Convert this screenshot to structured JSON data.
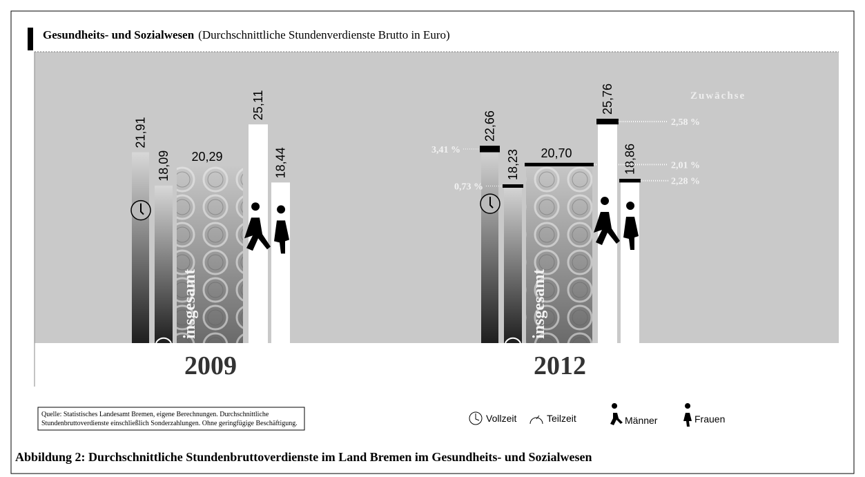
{
  "chart_data": {
    "type": "bar",
    "title": "Gesundheits- und Sozialwesen",
    "subtitle": "(Durchschnittliche Stundenverdienste Brutto in Euro)",
    "categories": [
      "Vollzeit",
      "Teilzeit",
      "insgesamt",
      "Männer",
      "Frauen"
    ],
    "series": [
      {
        "name": "2009",
        "values": [
          21.91,
          18.09,
          20.29,
          25.11,
          18.44
        ],
        "value_labels": [
          "21,91",
          "18,09",
          "20,29",
          "25,11",
          "18,44"
        ]
      },
      {
        "name": "2012",
        "values": [
          22.66,
          18.23,
          20.7,
          25.76,
          18.86
        ],
        "value_labels": [
          "22,66",
          "18,23",
          "20,70",
          "25,76",
          "18,86"
        ]
      }
    ],
    "growth": {
      "title": "Zuwächse",
      "values": [
        3.41,
        0.73,
        2.01,
        2.58,
        2.28
      ],
      "value_labels": [
        "3,41 %",
        "0,73 %",
        "2,01 %",
        "2,58 %",
        "2,28 %"
      ]
    },
    "source": [
      "Quelle: Statistisches Landesamt Bremen, eigene Berechnungen. Durchschnittliche",
      "Stundenbruttoverdienste einschließlich Sonderzahlungen. Ohne geringfügige Beschäftigung."
    ],
    "caption": "Abbildung 2: Durchschnittliche Stundenbruttoverdienste im Land Bremen im Gesundheits- und Sozialwesen"
  }
}
